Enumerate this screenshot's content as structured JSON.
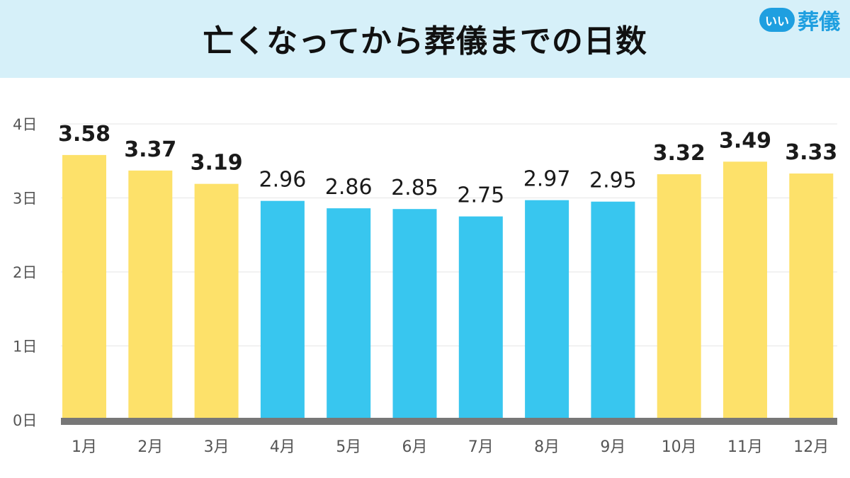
{
  "header": {
    "title": "亡くなってから葬儀までの日数",
    "logo_badge": "いい",
    "logo_text": "葬儀"
  },
  "colors": {
    "header_bg": "#d6f0f9",
    "highlight": "#fde16a",
    "normal": "#38c6ef",
    "baseline": "#777777",
    "logo": "#1f9fe0"
  },
  "chart_data": {
    "type": "bar",
    "title": "亡くなってから葬儀までの日数",
    "xlabel": "",
    "ylabel": "",
    "categories": [
      "1月",
      "2月",
      "3月",
      "4月",
      "5月",
      "6月",
      "7月",
      "8月",
      "9月",
      "10月",
      "11月",
      "12月"
    ],
    "values": [
      3.58,
      3.37,
      3.19,
      2.96,
      2.86,
      2.85,
      2.75,
      2.97,
      2.95,
      3.32,
      3.49,
      3.33
    ],
    "value_labels": [
      "3.58",
      "3.37",
      "3.19",
      "2.96",
      "2.86",
      "2.85",
      "2.75",
      "2.97",
      "2.95",
      "3.32",
      "3.49",
      "3.33"
    ],
    "highlighted": [
      true,
      true,
      true,
      false,
      false,
      false,
      false,
      false,
      false,
      true,
      true,
      true
    ],
    "ylim": [
      0,
      4
    ],
    "yticks": [
      {
        "value": 0,
        "label": "0日"
      },
      {
        "value": 1,
        "label": "1日"
      },
      {
        "value": 2,
        "label": "2日"
      },
      {
        "value": 3,
        "label": "3日"
      },
      {
        "value": 4,
        "label": "4日"
      }
    ],
    "grid": true,
    "legend": "none"
  }
}
